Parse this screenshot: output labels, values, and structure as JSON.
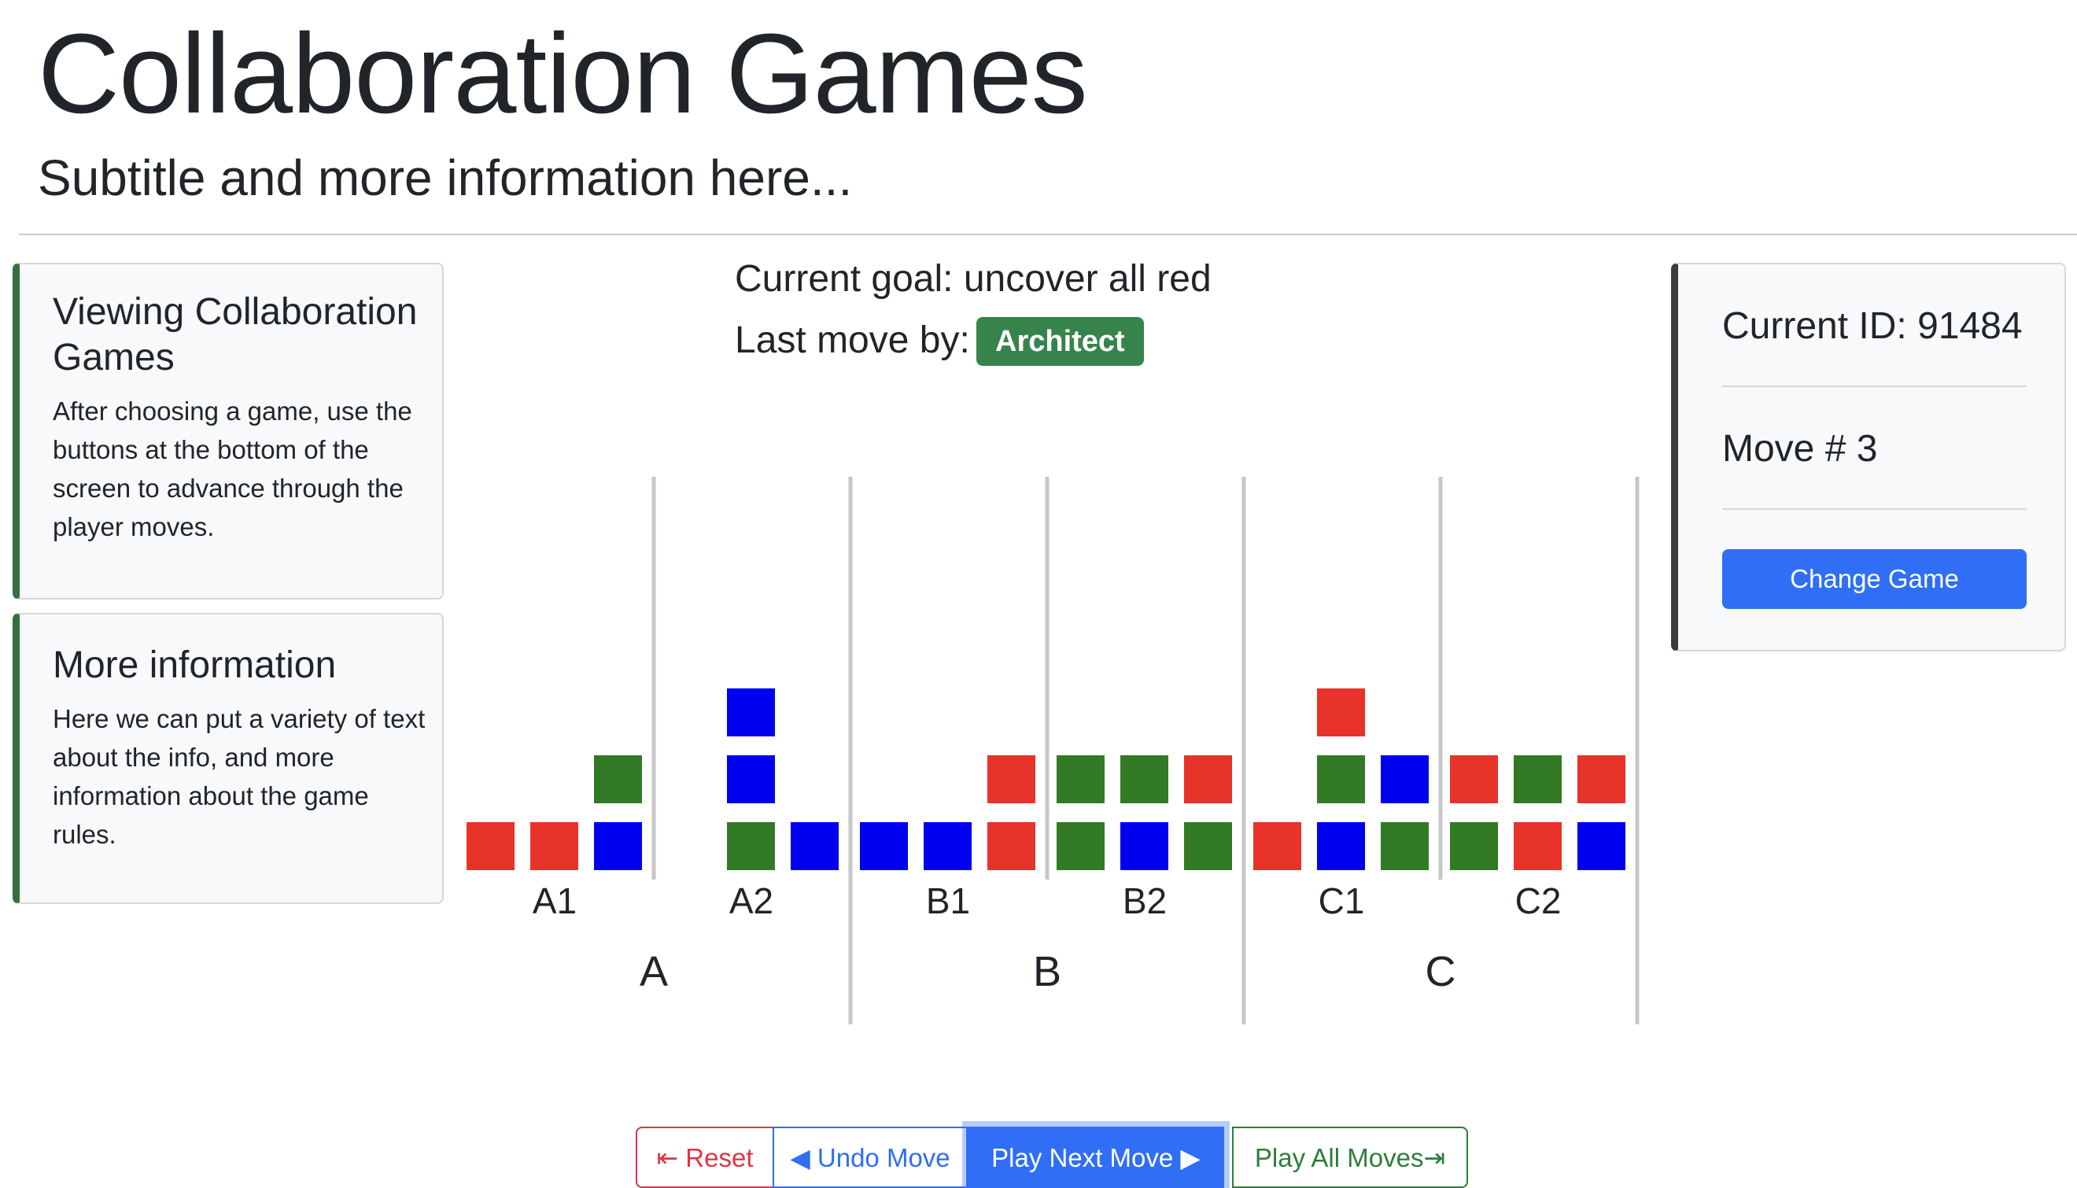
{
  "header": {
    "title": "Collaboration Games",
    "subtitle": "Subtitle and more information here..."
  },
  "sidebar": {
    "cards": [
      {
        "title": "Viewing Collaboration Games",
        "body": "After choosing a game, use the buttons at the bottom of the screen to advance through the player moves."
      },
      {
        "title": "More information",
        "body": "Here we can put a variety of text about the info, and more information about the game rules."
      }
    ]
  },
  "status": {
    "current_id": "Current ID: 91484",
    "move": "Move # 3",
    "change_button": "Change Game"
  },
  "game": {
    "goal": "Current goal: uncover all red",
    "last_move_label": "Last move by:",
    "last_move_by": "Architect",
    "colors": {
      "red": "#e8332a",
      "green": "#327a25",
      "blue": "#0000f0"
    },
    "groups": [
      {
        "label": "A",
        "subs": [
          {
            "label": "A1",
            "stacks": [
              [
                "red"
              ],
              [
                "red"
              ],
              [
                "blue",
                "green"
              ]
            ]
          },
          {
            "label": "A2",
            "stacks": [
              [
                "green",
                "blue",
                "blue"
              ],
              [
                "blue"
              ]
            ]
          }
        ]
      },
      {
        "label": "B",
        "subs": [
          {
            "label": "B1",
            "stacks": [
              [
                "blue"
              ],
              [
                "blue"
              ],
              [
                "red",
                "red"
              ]
            ]
          },
          {
            "label": "B2",
            "stacks": [
              [
                "green",
                "green"
              ],
              [
                "blue",
                "green"
              ],
              [
                "green",
                "red"
              ]
            ]
          }
        ]
      },
      {
        "label": "C",
        "subs": [
          {
            "label": "C1",
            "stacks": [
              [
                "red"
              ],
              [
                "blue",
                "green",
                "red"
              ],
              [
                "green",
                "blue"
              ]
            ]
          },
          {
            "label": "C2",
            "stacks": [
              [
                "green",
                "red"
              ],
              [
                "red",
                "green"
              ],
              [
                "blue",
                "red"
              ]
            ]
          }
        ]
      }
    ]
  },
  "controls": {
    "reset": "⇤ Reset",
    "undo": "◀ Undo Move",
    "next": "Play Next Move ▶",
    "all": "Play All Moves⇥"
  }
}
